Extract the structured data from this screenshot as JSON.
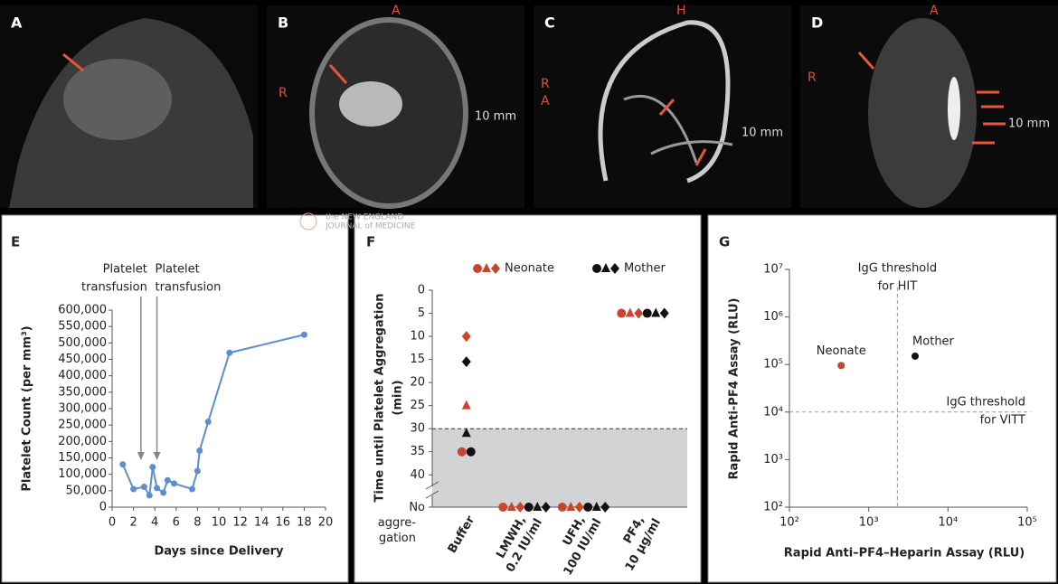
{
  "image_panels": [
    {
      "letter": "A",
      "marks": []
    },
    {
      "letter": "B",
      "marks": [
        "A",
        "R"
      ],
      "scale": "10 mm"
    },
    {
      "letter": "C",
      "marks": [
        "H",
        "R",
        "A"
      ],
      "scale": "10 mm"
    },
    {
      "letter": "D",
      "marks": [
        "A",
        "R"
      ],
      "scale": "10 mm"
    }
  ],
  "watermark": [
    "the NEW ENGLAND",
    "JOURNAL of MEDICINE"
  ],
  "chart_data": [
    {
      "type": "line",
      "panel": "E",
      "ylabel": "Platelet Count (per mm³)",
      "xlabel": "Days since Delivery",
      "color": "#5b8fd0",
      "x": [
        1,
        2,
        3,
        3.5,
        3.8,
        4.2,
        4.8,
        5.2,
        5.8,
        7.5,
        8,
        8.2,
        9,
        11,
        18
      ],
      "values": [
        130000,
        55000,
        62000,
        36000,
        122000,
        58000,
        44000,
        82000,
        72000,
        55000,
        110000,
        172000,
        260000,
        470000,
        525000
      ],
      "xlim": [
        0,
        20
      ],
      "xticks": [
        0,
        2,
        4,
        6,
        8,
        10,
        12,
        14,
        16,
        18,
        20
      ],
      "ylim": [
        0,
        600000
      ],
      "yticks": [
        0,
        {
          "value": 50000,
          "label": "50,000"
        },
        {
          "value": 100000,
          "label": "100,000"
        },
        {
          "value": 150000,
          "label": "150,000"
        },
        {
          "value": 200000,
          "label": "200,000"
        },
        {
          "value": 250000,
          "label": "250,000"
        },
        {
          "value": 300000,
          "label": "300,000"
        },
        {
          "value": 350000,
          "label": "350,000"
        },
        {
          "value": 400000,
          "label": "400,000"
        },
        {
          "value": 450000,
          "label": "450,000"
        },
        {
          "value": 500000,
          "label": "500,000"
        },
        {
          "value": 550000,
          "label": "550,000"
        },
        {
          "value": 600000,
          "label": "600,000"
        }
      ],
      "annotations": [
        {
          "text": [
            "Platelet",
            "transfusion"
          ],
          "x": 2.7
        },
        {
          "text": [
            "Platelet",
            "transfusion"
          ],
          "x": 4.2
        }
      ]
    },
    {
      "type": "strip",
      "panel": "F",
      "ylabel": [
        "Time until Platelet Aggregation",
        "(min)"
      ],
      "categories": [
        "Buffer",
        "LMWH, 0.2 IU/ml",
        "UFH, 100 IU/ml",
        "PF4, 10 μg/ml"
      ],
      "series": [
        {
          "name": "Neonate",
          "color": "#c8452f",
          "markers": [
            "circle",
            "triangle",
            "diamond"
          ],
          "values": [
            [
              35,
              25,
              10
            ],
            [
              47,
              47,
              47
            ],
            [
              47,
              47,
              47
            ],
            [
              5,
              5,
              5
            ]
          ]
        },
        {
          "name": "Mother",
          "color": "#111111",
          "markers": [
            "circle",
            "triangle",
            "diamond"
          ],
          "values": [
            [
              35,
              31,
              15.5
            ],
            [
              47,
              47,
              47
            ],
            [
              47,
              47,
              47
            ],
            [
              5,
              5,
              5
            ]
          ]
        }
      ],
      "ylim": [
        0,
        47
      ],
      "yticks": [
        0,
        5,
        10,
        15,
        20,
        25,
        30,
        35,
        40,
        {
          "value": 47,
          "label": "No\naggre-\ngation"
        }
      ],
      "threshold": 30,
      "inverted": true
    },
    {
      "type": "scatter",
      "panel": "G",
      "ylabel": "Rapid Anti-PF4 Assay (RLU)",
      "xlabel": "Rapid Anti–PF4–Heparin Assay (RLU)",
      "log": true,
      "series": [
        {
          "name": "Neonate",
          "color": "#c8452f",
          "x": [
            450
          ],
          "values": [
            95000
          ]
        },
        {
          "name": "Mother",
          "color": "#111111",
          "x": [
            3850
          ],
          "values": [
            150000
          ]
        }
      ],
      "xlim": [
        100,
        100000
      ],
      "xticks": [
        {
          "value": 100,
          "label": "10²"
        },
        {
          "value": 1000,
          "label": "10³"
        },
        {
          "value": 10000,
          "label": "10⁴"
        },
        {
          "value": 100000,
          "label": "10⁵"
        }
      ],
      "ylim": [
        100,
        10000000
      ],
      "yticks": [
        {
          "value": 100,
          "label": "10²"
        },
        {
          "value": 1000,
          "label": "10³"
        },
        {
          "value": 10000,
          "label": "10⁴"
        },
        {
          "value": 100000,
          "label": "10⁵"
        },
        {
          "value": 1000000,
          "label": "10⁶"
        },
        {
          "value": 10000000,
          "label": "10⁷"
        }
      ],
      "thresholds": [
        {
          "axis": "x",
          "value": 2300,
          "label": [
            "IgG threshold",
            "for HIT"
          ]
        },
        {
          "axis": "y",
          "value": 10000,
          "label": [
            "IgG threshold",
            "for VITT"
          ]
        }
      ]
    }
  ]
}
